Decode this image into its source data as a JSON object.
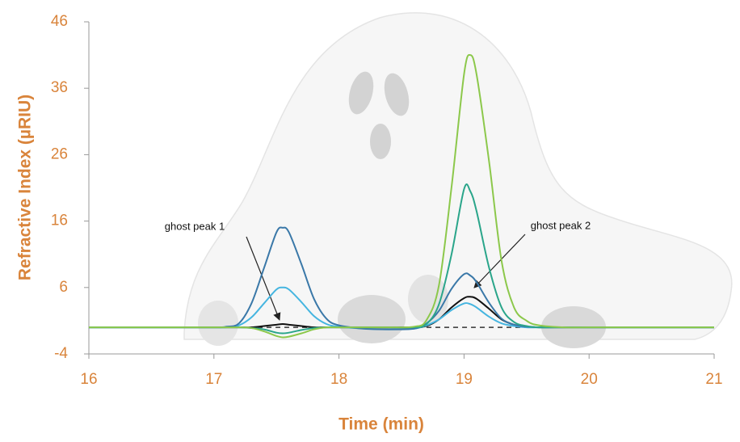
{
  "chart_data": {
    "type": "line",
    "x_label": "Time (min)",
    "y_label": "Refractive Index (µRIU)",
    "annotations": [
      "ghost peak 1",
      "ghost peak 2"
    ],
    "xlim": [
      16,
      21
    ],
    "xticks": [
      16,
      17,
      18,
      19,
      20,
      21
    ],
    "ylim": [
      -4,
      46
    ],
    "yticks": [
      -4,
      6,
      16,
      26,
      36,
      46
    ],
    "grid": false,
    "x": [
      16,
      16.5,
      17,
      17.1,
      17.2,
      17.3,
      17.4,
      17.5,
      17.55,
      17.6,
      17.7,
      17.8,
      17.9,
      18,
      18.2,
      18.4,
      18.6,
      18.7,
      18.8,
      18.9,
      19,
      19.05,
      19.1,
      19.2,
      19.3,
      19.4,
      19.5,
      19.6,
      19.8,
      20,
      20.5,
      21
    ],
    "series": [
      {
        "color": "#8cc84b",
        "dashed": false,
        "values": [
          0,
          0,
          0,
          0,
          0,
          -0.1,
          -0.6,
          -1.3,
          -1.5,
          -1.4,
          -0.9,
          -0.3,
          0,
          0,
          0,
          0,
          0.1,
          1.1,
          6.4,
          21.1,
          38.1,
          41,
          38.1,
          25,
          10,
          3,
          1,
          0.3,
          0,
          0,
          0,
          0
        ]
      },
      {
        "color": "#2aa58a",
        "dashed": false,
        "values": [
          0,
          0,
          0,
          0,
          0,
          -0.1,
          -0.3,
          -0.8,
          -0.9,
          -0.8,
          -0.4,
          -0.1,
          0,
          0,
          0,
          0,
          0,
          0.5,
          3.5,
          11,
          20.8,
          20.5,
          17.5,
          9,
          3,
          0.8,
          0.2,
          0,
          0,
          0,
          0,
          0
        ]
      },
      {
        "color": "#3a78a8",
        "dashed": false,
        "values": [
          0,
          0,
          0,
          0.1,
          0.6,
          3.6,
          8.9,
          14.3,
          15,
          14.3,
          9.5,
          4.3,
          1.3,
          0.3,
          -0.2,
          -0.3,
          -0.2,
          0.6,
          2.5,
          5.8,
          8,
          7.8,
          6.8,
          3.7,
          1.3,
          0.4,
          0.1,
          0,
          0,
          0,
          0,
          0
        ]
      },
      {
        "color": "#45b5e0",
        "dashed": false,
        "values": [
          0,
          0,
          0,
          0,
          0.3,
          1.5,
          3.6,
          5.7,
          6,
          5.7,
          3.8,
          1.7,
          0.5,
          0.1,
          -0.2,
          -0.3,
          -0.2,
          0.3,
          1.2,
          2.6,
          3.6,
          3.5,
          3,
          1.6,
          0.6,
          0.2,
          0,
          0,
          0,
          0,
          0,
          0
        ]
      },
      {
        "color": "#111111",
        "dashed": false,
        "values": [
          0,
          0,
          0,
          0,
          0,
          0,
          0.2,
          0.4,
          0.5,
          0.4,
          0.2,
          0,
          0,
          0,
          0,
          0,
          0,
          0.2,
          1.2,
          3,
          4.4,
          4.6,
          4.3,
          2.8,
          1.2,
          0.4,
          0.1,
          0,
          0,
          0,
          0,
          0
        ]
      },
      {
        "color": "#333333",
        "dashed": true,
        "values": [
          0,
          0,
          0,
          0,
          0,
          0,
          0,
          0,
          0,
          0,
          0,
          0,
          0,
          0,
          0,
          0,
          0,
          0,
          0,
          0,
          0,
          0,
          0,
          0,
          0,
          0,
          0,
          0,
          0,
          0,
          0,
          0
        ]
      }
    ]
  }
}
